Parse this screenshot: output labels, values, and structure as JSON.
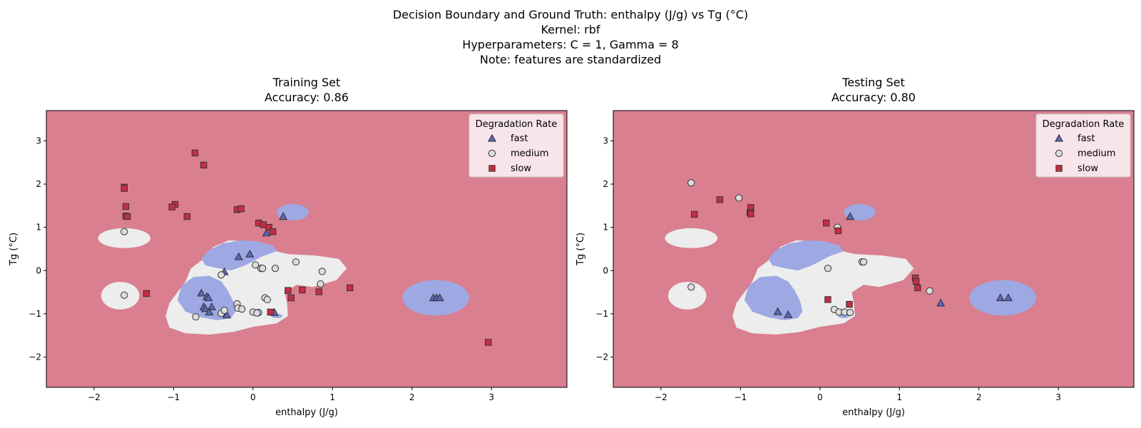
{
  "figure": {
    "suptitle_lines": [
      "Decision Boundary and Ground Truth: enthalpy (J/g) vs Tg (°C)",
      "Kernel: rbf",
      "Hyperparameters: C = 1, Gamma = 8",
      "Note: features are standardized"
    ]
  },
  "colors": {
    "region_fast": "#9ea8e3",
    "region_medium": "#ededed",
    "region_slow": "#d97f8f",
    "marker_fast": "#5b67b7",
    "marker_medium": "#dcdcdc",
    "marker_slow": "#c72c45",
    "marker_edge": "#333333"
  },
  "chart_data": [
    {
      "type": "scatter",
      "title": "Training Set",
      "subtitle": "Accuracy: 0.86",
      "xlabel": "enthalpy (J/g)",
      "ylabel": "Tg (°C)",
      "xlim": [
        -2.6,
        3.95
      ],
      "ylim": [
        -2.7,
        3.7
      ],
      "xticks": [
        -2,
        -1,
        0,
        1,
        2,
        3
      ],
      "yticks": [
        -2,
        -1,
        0,
        1,
        2,
        3
      ],
      "legend": {
        "title": "Degradation Rate",
        "placement": "top-right"
      },
      "background_class": "slow",
      "regions": [
        {
          "class": "medium",
          "shape": "ellipse",
          "cx": -1.62,
          "cy": 0.75,
          "rx": 0.33,
          "ry": 0.23
        },
        {
          "class": "medium",
          "shape": "ellipse",
          "cx": -2.0,
          "cy": 1.0,
          "rx": 0.0,
          "ry": 0.0
        },
        {
          "class": "medium",
          "shape": "ellipse",
          "cx": -1.67,
          "cy": -0.58,
          "rx": 0.24,
          "ry": 0.32
        },
        {
          "class": "fast",
          "shape": "ellipse",
          "cx": 0.5,
          "cy": 1.35,
          "rx": 0.2,
          "ry": 0.19
        },
        {
          "class": "fast",
          "shape": "ellipse",
          "cx": 2.3,
          "cy": -0.63,
          "rx": 0.42,
          "ry": 0.41
        }
      ],
      "series": [
        {
          "name": "fast",
          "marker": "triangle",
          "points": [
            [
              0.38,
              1.25
            ],
            [
              0.17,
              0.87
            ],
            [
              -0.04,
              0.38
            ],
            [
              -0.18,
              0.32
            ],
            [
              -0.36,
              -0.03
            ],
            [
              -0.65,
              -0.52
            ],
            [
              -0.58,
              -0.6
            ],
            [
              -0.56,
              -0.63
            ],
            [
              -0.62,
              -0.84
            ],
            [
              -0.52,
              -0.84
            ],
            [
              -0.6,
              -0.88
            ],
            [
              -0.55,
              -0.96
            ],
            [
              -0.36,
              -0.96
            ],
            [
              -0.33,
              -1.03
            ],
            [
              0.27,
              -0.97
            ],
            [
              2.27,
              -0.63
            ],
            [
              2.31,
              -0.63
            ],
            [
              2.35,
              -0.63
            ]
          ]
        },
        {
          "name": "medium",
          "marker": "circle",
          "points": [
            [
              -1.62,
              0.9
            ],
            [
              -1.62,
              -0.57
            ],
            [
              0.54,
              0.2
            ],
            [
              0.87,
              -0.02
            ],
            [
              0.85,
              -0.31
            ],
            [
              0.03,
              0.13
            ],
            [
              0.1,
              0.05
            ],
            [
              0.12,
              0.05
            ],
            [
              0.28,
              0.05
            ],
            [
              -0.4,
              -0.1
            ],
            [
              -0.2,
              -0.77
            ],
            [
              -0.19,
              -0.87
            ],
            [
              -0.14,
              -0.89
            ],
            [
              -0.4,
              -0.99
            ],
            [
              -0.36,
              -0.92
            ],
            [
              0.15,
              -0.63
            ],
            [
              0.18,
              -0.67
            ],
            [
              -0.72,
              -1.07
            ],
            [
              0.0,
              -0.96
            ],
            [
              0.07,
              -0.97
            ],
            [
              0.05,
              -0.98
            ]
          ]
        },
        {
          "name": "slow",
          "marker": "square",
          "points": [
            [
              -1.62,
              1.93
            ],
            [
              -1.62,
              1.9
            ],
            [
              -1.6,
              1.48
            ],
            [
              -1.6,
              1.26
            ],
            [
              -1.58,
              1.25
            ],
            [
              -0.73,
              2.72
            ],
            [
              -0.62,
              2.44
            ],
            [
              -0.98,
              1.53
            ],
            [
              -1.02,
              1.47
            ],
            [
              -0.83,
              1.25
            ],
            [
              -0.2,
              1.41
            ],
            [
              -0.15,
              1.43
            ],
            [
              0.07,
              1.1
            ],
            [
              0.13,
              1.06
            ],
            [
              0.2,
              1.0
            ],
            [
              0.25,
              0.9
            ],
            [
              -1.34,
              -0.53
            ],
            [
              0.44,
              -0.46
            ],
            [
              0.48,
              -0.63
            ],
            [
              0.62,
              -0.45
            ],
            [
              0.83,
              -0.49
            ],
            [
              1.22,
              -0.4
            ],
            [
              0.22,
              -0.96
            ],
            [
              2.96,
              -1.66
            ]
          ]
        }
      ]
    },
    {
      "type": "scatter",
      "title": "Testing Set",
      "subtitle": "Accuracy: 0.80",
      "xlabel": "enthalpy (J/g)",
      "ylabel": "Tg (°C)",
      "xlim": [
        -2.6,
        3.95
      ],
      "ylim": [
        -2.7,
        3.7
      ],
      "xticks": [
        -2,
        -1,
        0,
        1,
        2,
        3
      ],
      "yticks": [
        -2,
        -1,
        0,
        1,
        2,
        3
      ],
      "legend": {
        "title": "Degradation Rate",
        "placement": "top-right"
      },
      "background_class": "slow",
      "regions": [
        {
          "class": "medium",
          "shape": "ellipse",
          "cx": -1.62,
          "cy": 0.75,
          "rx": 0.33,
          "ry": 0.23
        },
        {
          "class": "medium",
          "shape": "ellipse",
          "cx": -1.67,
          "cy": -0.58,
          "rx": 0.24,
          "ry": 0.32
        },
        {
          "class": "fast",
          "shape": "ellipse",
          "cx": 0.5,
          "cy": 1.35,
          "rx": 0.2,
          "ry": 0.19
        },
        {
          "class": "fast",
          "shape": "ellipse",
          "cx": 2.3,
          "cy": -0.63,
          "rx": 0.42,
          "ry": 0.41
        }
      ],
      "series": [
        {
          "name": "fast",
          "marker": "triangle",
          "points": [
            [
              0.38,
              1.25
            ],
            [
              -0.53,
              -0.95
            ],
            [
              -0.4,
              -1.02
            ],
            [
              1.52,
              -0.75
            ],
            [
              2.27,
              -0.63
            ],
            [
              2.37,
              -0.63
            ]
          ]
        },
        {
          "name": "medium",
          "marker": "circle",
          "points": [
            [
              -1.62,
              2.03
            ],
            [
              -1.02,
              1.68
            ],
            [
              0.22,
              1.0
            ],
            [
              0.53,
              0.2
            ],
            [
              0.55,
              0.2
            ],
            [
              0.1,
              0.05
            ],
            [
              -1.62,
              -0.38
            ],
            [
              1.38,
              -0.47
            ],
            [
              0.18,
              -0.9
            ],
            [
              0.24,
              -0.96
            ],
            [
              0.31,
              -0.96
            ],
            [
              0.38,
              -0.97
            ]
          ]
        },
        {
          "name": "slow",
          "marker": "square",
          "points": [
            [
              -1.58,
              1.3
            ],
            [
              -1.26,
              1.64
            ],
            [
              -0.87,
              1.46
            ],
            [
              -0.88,
              1.34
            ],
            [
              -0.87,
              1.31
            ],
            [
              0.08,
              1.1
            ],
            [
              0.23,
              0.92
            ],
            [
              1.2,
              -0.17
            ],
            [
              1.21,
              -0.25
            ],
            [
              1.23,
              -0.4
            ],
            [
              0.1,
              -0.67
            ],
            [
              0.37,
              -0.78
            ]
          ]
        }
      ]
    }
  ]
}
